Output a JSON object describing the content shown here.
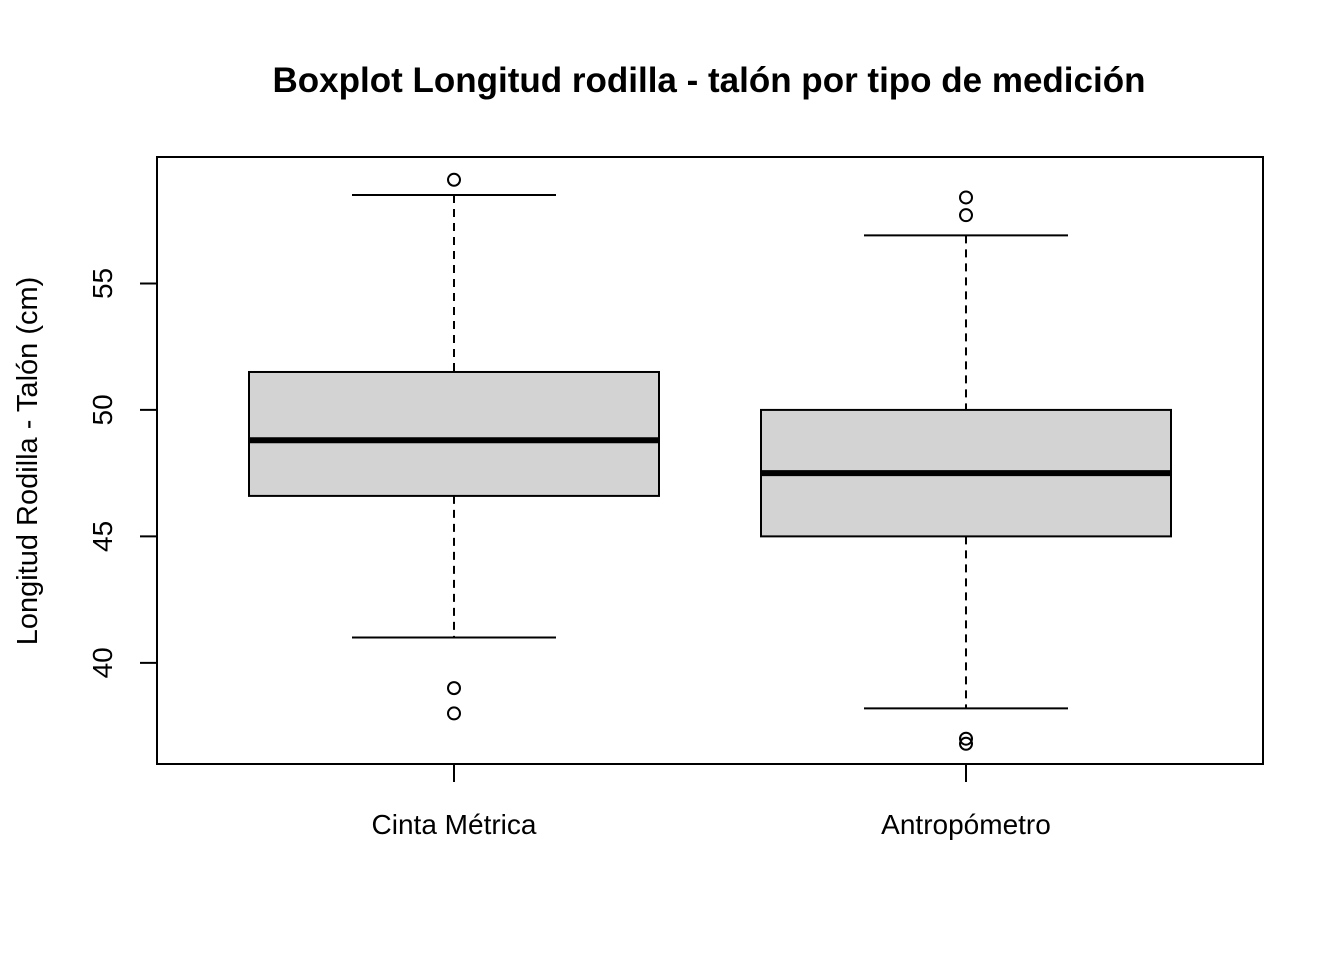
{
  "chart_data": {
    "type": "boxplot",
    "title": "Boxplot Longitud rodilla - talón por tipo de medición",
    "xlabel": "",
    "ylabel": "Longitud Rodilla - Talón (cm)",
    "ylim": [
      36.0,
      60.0
    ],
    "yticks": [
      40,
      45,
      50,
      55
    ],
    "y_tick_labels": [
      "40",
      "45",
      "50",
      "55"
    ],
    "categories": [
      "Cinta Métrica",
      "Antropómetro"
    ],
    "box_fill": "#d3d3d3",
    "line_color": "#000000",
    "boxes": [
      {
        "name": "Cinta Métrica",
        "whisker_low": 41.0,
        "q1": 46.6,
        "median": 48.8,
        "q3": 51.5,
        "whisker_high": 58.5,
        "outliers": [
          59.1,
          39.0,
          38.0
        ]
      },
      {
        "name": "Antropómetro",
        "whisker_low": 38.2,
        "q1": 45.0,
        "median": 47.5,
        "q3": 50.0,
        "whisker_high": 56.9,
        "outliers": [
          58.4,
          57.7,
          37.0,
          36.8
        ]
      }
    ]
  }
}
